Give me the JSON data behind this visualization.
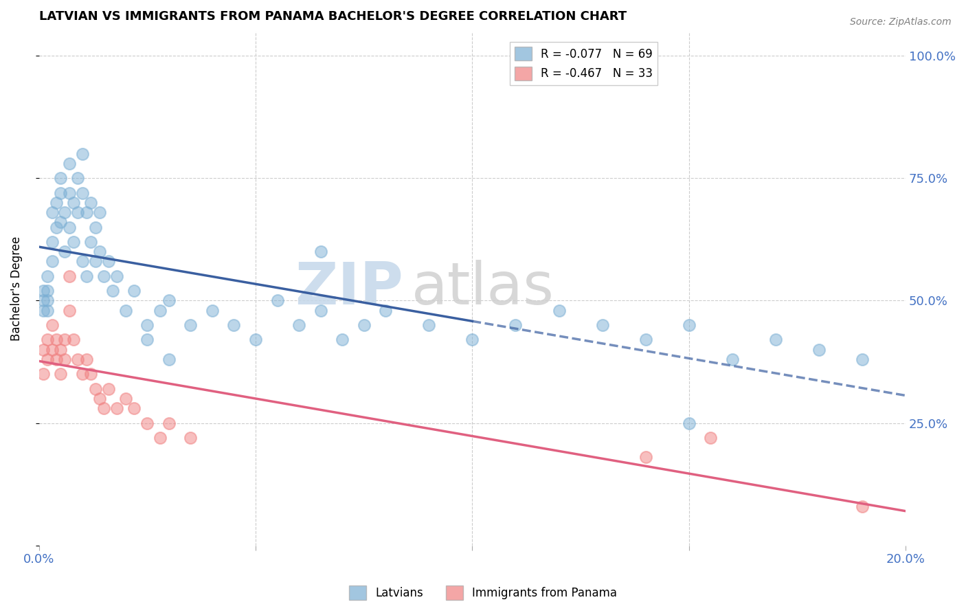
{
  "title": "LATVIAN VS IMMIGRANTS FROM PANAMA BACHELOR'S DEGREE CORRELATION CHART",
  "source": "Source: ZipAtlas.com",
  "ylabel": "Bachelor's Degree",
  "xlim": [
    0.0,
    0.2
  ],
  "ylim": [
    0.0,
    1.05
  ],
  "x_ticks": [
    0.0,
    0.05,
    0.1,
    0.15,
    0.2
  ],
  "x_tick_labels": [
    "0.0%",
    "",
    "",
    "",
    "20.0%"
  ],
  "y_ticks": [
    0.0,
    0.25,
    0.5,
    0.75,
    1.0
  ],
  "y_tick_labels": [
    "",
    "25.0%",
    "50.0%",
    "75.0%",
    "100.0%"
  ],
  "legend_entries": [
    {
      "label": "R = -0.077   N = 69",
      "color": "#a8c4e0"
    },
    {
      "label": "R = -0.467   N = 33",
      "color": "#f4a7b9"
    }
  ],
  "latvians_color": "#7bafd4",
  "panama_color": "#f08080",
  "latvians_line_color": "#3a5fa0",
  "panama_line_color": "#e06080",
  "latvians_x": [
    0.001,
    0.001,
    0.001,
    0.002,
    0.002,
    0.002,
    0.002,
    0.003,
    0.003,
    0.003,
    0.004,
    0.004,
    0.005,
    0.005,
    0.005,
    0.006,
    0.006,
    0.007,
    0.007,
    0.007,
    0.008,
    0.008,
    0.009,
    0.009,
    0.01,
    0.01,
    0.011,
    0.012,
    0.013,
    0.014,
    0.015,
    0.016,
    0.017,
    0.018,
    0.02,
    0.022,
    0.025,
    0.028,
    0.03,
    0.035,
    0.04,
    0.045,
    0.05,
    0.055,
    0.06,
    0.065,
    0.07,
    0.075,
    0.08,
    0.09,
    0.1,
    0.11,
    0.12,
    0.13,
    0.14,
    0.15,
    0.16,
    0.17,
    0.18,
    0.19,
    0.01,
    0.011,
    0.012,
    0.013,
    0.014,
    0.025,
    0.03,
    0.065,
    0.15
  ],
  "latvians_y": [
    0.5,
    0.52,
    0.48,
    0.55,
    0.5,
    0.48,
    0.52,
    0.68,
    0.62,
    0.58,
    0.7,
    0.65,
    0.72,
    0.66,
    0.75,
    0.68,
    0.6,
    0.72,
    0.65,
    0.78,
    0.7,
    0.62,
    0.75,
    0.68,
    0.8,
    0.72,
    0.68,
    0.7,
    0.65,
    0.68,
    0.55,
    0.58,
    0.52,
    0.55,
    0.48,
    0.52,
    0.45,
    0.48,
    0.5,
    0.45,
    0.48,
    0.45,
    0.42,
    0.5,
    0.45,
    0.48,
    0.42,
    0.45,
    0.48,
    0.45,
    0.42,
    0.45,
    0.48,
    0.45,
    0.42,
    0.45,
    0.38,
    0.42,
    0.4,
    0.38,
    0.58,
    0.55,
    0.62,
    0.58,
    0.6,
    0.42,
    0.38,
    0.6,
    0.25
  ],
  "panama_x": [
    0.001,
    0.001,
    0.002,
    0.002,
    0.003,
    0.003,
    0.004,
    0.004,
    0.005,
    0.005,
    0.006,
    0.006,
    0.007,
    0.007,
    0.008,
    0.009,
    0.01,
    0.011,
    0.012,
    0.013,
    0.014,
    0.015,
    0.016,
    0.018,
    0.02,
    0.022,
    0.025,
    0.028,
    0.03,
    0.035,
    0.14,
    0.155,
    0.19
  ],
  "panama_y": [
    0.4,
    0.35,
    0.42,
    0.38,
    0.45,
    0.4,
    0.38,
    0.42,
    0.35,
    0.4,
    0.42,
    0.38,
    0.55,
    0.48,
    0.42,
    0.38,
    0.35,
    0.38,
    0.35,
    0.32,
    0.3,
    0.28,
    0.32,
    0.28,
    0.3,
    0.28,
    0.25,
    0.22,
    0.25,
    0.22,
    0.18,
    0.22,
    0.08
  ]
}
